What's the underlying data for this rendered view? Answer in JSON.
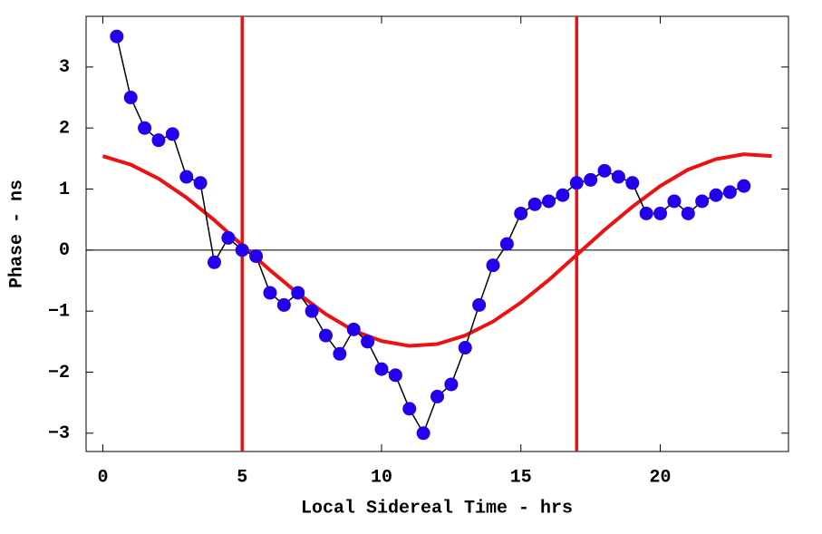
{
  "chart_data": {
    "type": "line",
    "xlabel": "Local Sidereal Time  - hrs",
    "ylabel": "Phase - ns",
    "xlim": [
      -0.6,
      24.6
    ],
    "ylim": [
      -3.3,
      3.83
    ],
    "xticks": [
      0,
      5,
      10,
      15,
      20
    ],
    "yticks": [
      {
        "value": -3,
        "label": "−3"
      },
      {
        "value": -2,
        "label": "−2"
      },
      {
        "value": -1,
        "label": "−1"
      },
      0,
      1,
      2,
      3
    ],
    "vlines": [
      5,
      17
    ],
    "vline_color": "#ee1111",
    "hlines": [
      0
    ],
    "series": [
      {
        "color": "#2200ee",
        "line_color": "#000000",
        "x": [
          0.5,
          1,
          1.5,
          2,
          2.5,
          3,
          3.5,
          4,
          4.5,
          5,
          5.5,
          6,
          6.5,
          7,
          7.5,
          8,
          8.5,
          9,
          9.5,
          10,
          10.5,
          11,
          11.5,
          12,
          12.5,
          13,
          13.5,
          14,
          14.5,
          15,
          15.5,
          16,
          16.5,
          17,
          17.5,
          18,
          18.5,
          19,
          19.5,
          20,
          20.5,
          21,
          21.5,
          22,
          22.5,
          23
        ],
        "values": [
          3.5,
          2.5,
          2.0,
          1.8,
          1.9,
          1.2,
          1.1,
          -0.2,
          0.2,
          0.0,
          -0.1,
          -0.7,
          -0.9,
          -0.7,
          -1.0,
          -1.4,
          -1.7,
          -1.3,
          -1.5,
          -1.95,
          -2.05,
          -2.6,
          -3.0,
          -2.4,
          -2.2,
          -1.6,
          -0.9,
          -0.25,
          0.1,
          0.6,
          0.75,
          0.8,
          0.9,
          1.1,
          1.15,
          1.3,
          1.2,
          1.1,
          0.6,
          0.6,
          0.8,
          0.6,
          0.8,
          0.9,
          0.95,
          1.05
        ]
      },
      {
        "color": "#ee1111",
        "x": [
          0,
          1,
          2,
          3,
          4,
          5,
          6,
          7,
          8,
          9,
          10,
          11,
          12,
          13,
          14,
          15,
          16,
          17,
          18,
          19,
          20,
          21,
          22,
          23,
          24
        ],
        "values": [
          1.54,
          1.4,
          1.17,
          0.86,
          0.49,
          0.08,
          -0.33,
          -0.71,
          -1.05,
          -1.32,
          -1.49,
          -1.57,
          -1.54,
          -1.4,
          -1.17,
          -0.86,
          -0.49,
          -0.08,
          0.33,
          0.71,
          1.05,
          1.32,
          1.49,
          1.57,
          1.54
        ]
      }
    ]
  }
}
